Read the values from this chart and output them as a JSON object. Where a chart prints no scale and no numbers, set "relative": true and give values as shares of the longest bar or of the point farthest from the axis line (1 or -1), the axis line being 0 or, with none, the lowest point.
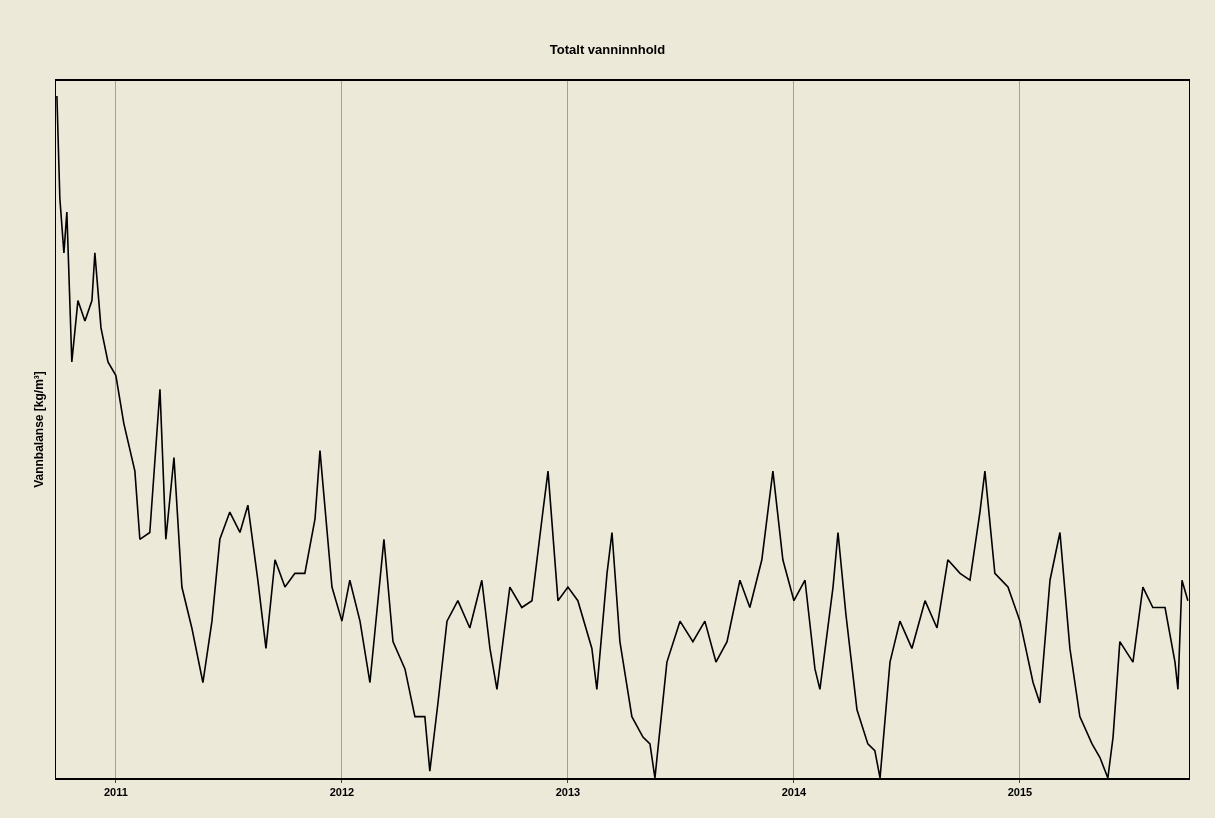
{
  "chart_data": {
    "type": "line",
    "title": "Totalt vanninnhold",
    "ylabel": "Vannbalanse [kg/m³]",
    "relative": true,
    "xlim": [
      2010.735,
      2015.748
    ],
    "xticks": [
      2011,
      2012,
      2013,
      2014,
      2015
    ],
    "grid": "x",
    "series": [
      {
        "color": "#000000",
        "x": [
          2010.739,
          2010.752,
          2010.77,
          2010.783,
          2010.805,
          2010.832,
          2010.863,
          2010.894,
          2010.907,
          2010.934,
          2010.965,
          2011.0,
          2011.035,
          2011.084,
          2011.106,
          2011.15,
          2011.195,
          2011.221,
          2011.257,
          2011.292,
          2011.336,
          2011.385,
          2011.425,
          2011.46,
          2011.504,
          2011.549,
          2011.584,
          2011.628,
          2011.664,
          2011.704,
          2011.748,
          2011.792,
          2011.836,
          2011.881,
          2011.903,
          2011.956,
          2012.0,
          2012.035,
          2012.08,
          2012.124,
          2012.186,
          2012.226,
          2012.279,
          2012.323,
          2012.367,
          2012.389,
          2012.425,
          2012.465,
          2012.513,
          2012.566,
          2012.619,
          2012.655,
          2012.686,
          2012.743,
          2012.796,
          2012.841,
          2012.889,
          2012.912,
          2012.956,
          2013.0,
          2013.044,
          2013.106,
          2013.128,
          2013.173,
          2013.195,
          2013.23,
          2013.283,
          2013.332,
          2013.363,
          2013.385,
          2013.438,
          2013.496,
          2013.553,
          2013.606,
          2013.655,
          2013.704,
          2013.761,
          2013.805,
          2013.858,
          2013.907,
          2013.951,
          2014.0,
          2014.049,
          2014.093,
          2014.115,
          2014.173,
          2014.195,
          2014.23,
          2014.279,
          2014.327,
          2014.358,
          2014.381,
          2014.425,
          2014.469,
          2014.522,
          2014.58,
          2014.633,
          2014.681,
          2014.735,
          2014.779,
          2014.823,
          2014.845,
          2014.889,
          2014.947,
          2015.0,
          2015.058,
          2015.088,
          2015.133,
          2015.177,
          2015.221,
          2015.265,
          2015.319,
          2015.354,
          2015.389,
          2015.412,
          2015.442,
          2015.5,
          2015.544,
          2015.588,
          2015.642,
          2015.686,
          2015.699,
          2015.717,
          2015.743
        ],
        "values": [
          1.0,
          0.85,
          0.77,
          0.83,
          0.61,
          0.7,
          0.67,
          0.7,
          0.77,
          0.66,
          0.61,
          0.59,
          0.52,
          0.45,
          0.35,
          0.36,
          0.57,
          0.35,
          0.47,
          0.28,
          0.22,
          0.14,
          0.23,
          0.35,
          0.39,
          0.36,
          0.4,
          0.29,
          0.19,
          0.32,
          0.28,
          0.3,
          0.3,
          0.38,
          0.48,
          0.28,
          0.23,
          0.29,
          0.23,
          0.14,
          0.35,
          0.2,
          0.16,
          0.09,
          0.09,
          0.01,
          0.11,
          0.23,
          0.26,
          0.22,
          0.29,
          0.19,
          0.13,
          0.28,
          0.25,
          0.26,
          0.39,
          0.45,
          0.26,
          0.28,
          0.26,
          0.19,
          0.13,
          0.3,
          0.36,
          0.2,
          0.09,
          0.06,
          0.05,
          0.0,
          0.17,
          0.23,
          0.2,
          0.23,
          0.17,
          0.2,
          0.29,
          0.25,
          0.32,
          0.45,
          0.32,
          0.26,
          0.29,
          0.16,
          0.13,
          0.28,
          0.36,
          0.24,
          0.1,
          0.05,
          0.04,
          0.0,
          0.17,
          0.23,
          0.19,
          0.26,
          0.22,
          0.32,
          0.3,
          0.29,
          0.39,
          0.45,
          0.3,
          0.28,
          0.23,
          0.14,
          0.11,
          0.29,
          0.36,
          0.19,
          0.09,
          0.05,
          0.03,
          0.0,
          0.06,
          0.2,
          0.17,
          0.28,
          0.25,
          0.25,
          0.17,
          0.13,
          0.29,
          0.26
        ]
      }
    ]
  }
}
